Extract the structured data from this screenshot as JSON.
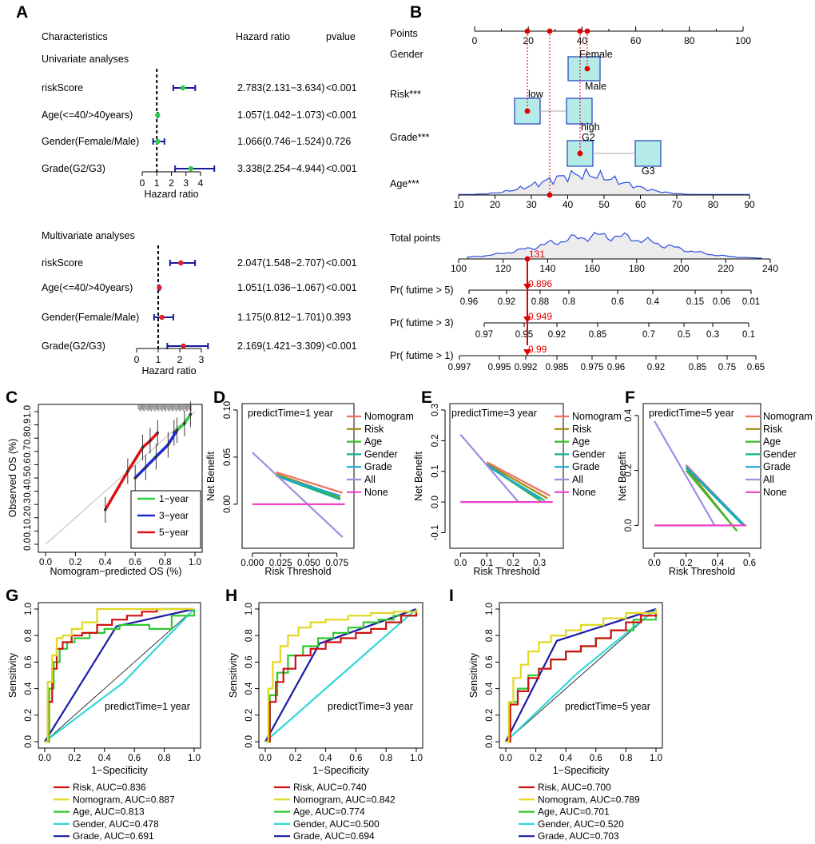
{
  "panel_labels": [
    "A",
    "B",
    "C",
    "D",
    "E",
    "F",
    "G",
    "H",
    "I"
  ],
  "colors": {
    "univariate_point": "#2ecc40",
    "multivariate_point": "#e02020",
    "ci_line": "#1a1aa0",
    "nomogram_box_fill": "#b5ebe6",
    "nomogram_box_stroke": "#2040c0",
    "red": "#e00000",
    "one_year": "#2ecc40",
    "three_year": "#1a2ad0",
    "five_year": "#e01010",
    "dca_nomogram": "#f07060",
    "dca_risk": "#a08a10",
    "dca_age": "#3cb830",
    "dca_gender": "#10b090",
    "dca_grade": "#20a8d8",
    "dca_all": "#a08ce0",
    "dca_none": "#f040c8",
    "roc_risk": "#d01010",
    "roc_nomogram": "#e0d820",
    "roc_age": "#30c830",
    "roc_gender": "#30d8d8",
    "roc_grade": "#1a1aa8"
  },
  "chart_data": [
    {
      "panel": "A",
      "type": "forest",
      "header": {
        "characteristics": "Characteristics",
        "hazard_ratio": "Hazard ratio",
        "pvalue": "pvalue"
      },
      "xlabel": "Hazard ratio",
      "groups": [
        {
          "title": "Univariate analyses",
          "xlim": [
            0,
            4
          ],
          "ticks": [
            "0",
            "1",
            "2",
            "3",
            "4"
          ],
          "rows": [
            {
              "name": "riskScore",
              "hr": 2.783,
              "low": 2.131,
              "high": 3.634,
              "hr_text": "2.783(2.131−3.634)",
              "p": "<0.001"
            },
            {
              "name": "Age(<=40/>40years)",
              "hr": 1.057,
              "low": 1.042,
              "high": 1.073,
              "hr_text": "1.057(1.042−1.073)",
              "p": "<0.001"
            },
            {
              "name": "Gender(Female/Male)",
              "hr": 1.066,
              "low": 0.746,
              "high": 1.524,
              "hr_text": "1.066(0.746−1.524)",
              "p": "0.726"
            },
            {
              "name": "Grade(G2/G3)",
              "hr": 3.338,
              "low": 2.254,
              "high": 4.944,
              "hr_text": "3.338(2.254−4.944)",
              "p": "<0.001"
            }
          ]
        },
        {
          "title": "Multivariate analyses",
          "xlim": [
            0,
            3
          ],
          "ticks": [
            "0",
            "1",
            "2",
            "3"
          ],
          "rows": [
            {
              "name": "riskScore",
              "hr": 2.047,
              "low": 1.548,
              "high": 2.707,
              "hr_text": "2.047(1.548−2.707)",
              "p": "<0.001"
            },
            {
              "name": "Age(<=40/>40years)",
              "hr": 1.051,
              "low": 1.036,
              "high": 1.067,
              "hr_text": "1.051(1.036−1.067)",
              "p": "<0.001"
            },
            {
              "name": "Gender(Female/Male)",
              "hr": 1.175,
              "low": 0.812,
              "high": 1.701,
              "hr_text": "1.175(0.812−1.701)",
              "p": "0.393"
            },
            {
              "name": "Grade(G2/G3)",
              "hr": 2.169,
              "low": 1.421,
              "high": 3.309,
              "hr_text": "2.169(1.421−3.309)",
              "p": "<0.001"
            }
          ]
        }
      ]
    },
    {
      "panel": "B",
      "type": "nomogram",
      "points_label": "Points",
      "points_ticks": [
        0,
        20,
        40,
        60,
        80,
        100
      ],
      "variables": [
        {
          "name": "Gender",
          "levels": [
            "Female",
            "Male"
          ]
        },
        {
          "name": "Risk***",
          "levels": [
            "low",
            "high"
          ]
        },
        {
          "name": "Grade***",
          "levels": [
            "G2",
            "G3"
          ]
        },
        {
          "name": "Age***",
          "ticks": [
            10,
            20,
            30,
            40,
            50,
            60,
            70,
            80,
            90
          ]
        }
      ],
      "total_points": {
        "label": "Total points",
        "ticks": [
          100,
          120,
          140,
          160,
          180,
          200,
          220,
          240
        ],
        "value": 131,
        "value_text": "131"
      },
      "survival_rows": [
        {
          "label": "Pr( futime > 5)",
          "ticks": [
            "0.96",
            "0.92",
            "0.88",
            "0.8",
            "0.6",
            "0.4",
            "0.15",
            "0.06",
            "0.01"
          ],
          "value": 0.896,
          "value_text": "0.896"
        },
        {
          "label": "Pr( futime > 3)",
          "ticks": [
            "0.97",
            "0.95",
            "0.92",
            "0.85",
            "0.7",
            "0.5",
            "0.3",
            "0.1"
          ],
          "value": 0.949,
          "value_text": "0.949"
        },
        {
          "label": "Pr( futime > 1)",
          "ticks": [
            "0.997",
            "0.995",
            "0.992",
            "0.985",
            "0.975",
            "0.96",
            "0.92",
            "0.85",
            "0.75",
            "0.65"
          ],
          "value": 0.99,
          "value_text": "0.99"
        }
      ]
    },
    {
      "panel": "C",
      "type": "calibration",
      "xlabel": "Nomogram−predicted OS (%)",
      "ylabel": "Observed OS (%)",
      "xlim": [
        0,
        1
      ],
      "ylim": [
        0,
        1
      ],
      "xticks": [
        "0.0",
        "0.2",
        "0.4",
        "0.6",
        "0.8",
        "1.0"
      ],
      "yticks": [
        "0.0",
        "0.1",
        "0.2",
        "0.3",
        "0.4",
        "0.5",
        "0.6",
        "0.7",
        "0.8",
        "0.9",
        "1.0"
      ],
      "legend": [
        "1−year",
        "3−year",
        "5−year"
      ],
      "series": [
        {
          "name": "1−year",
          "x": [
            0.86,
            0.93,
            0.97
          ],
          "y": [
            0.84,
            0.91,
            0.98
          ]
        },
        {
          "name": "3−year",
          "x": [
            0.6,
            0.67,
            0.74,
            0.82,
            0.88
          ],
          "y": [
            0.5,
            0.58,
            0.66,
            0.75,
            0.86
          ]
        },
        {
          "name": "5−year",
          "x": [
            0.4,
            0.55,
            0.65,
            0.7,
            0.75
          ],
          "y": [
            0.26,
            0.55,
            0.73,
            0.78,
            0.84
          ]
        }
      ]
    },
    {
      "panel": "D",
      "type": "line",
      "title": "predictTime=1 year",
      "xlabel": "Risk Threshold",
      "ylabel": "Net Benefit",
      "xlim": [
        -0.002,
        0.083
      ],
      "ylim": [
        -0.04,
        0.1
      ],
      "xticks": [
        "0.000",
        "0.025",
        "0.050",
        "0.075"
      ],
      "yticks": [
        "0.00",
        "0.05",
        "0.10"
      ],
      "legend": [
        "Nomogram",
        "Risk",
        "Age",
        "Gender",
        "Grade",
        "All",
        "None"
      ],
      "series": [
        {
          "name": "Nomogram",
          "x": [
            0.021,
            0.08
          ],
          "y": [
            0.034,
            0.012
          ]
        },
        {
          "name": "Risk",
          "x": [
            0.021,
            0.078
          ],
          "y": [
            0.032,
            0.008
          ]
        },
        {
          "name": "Age",
          "x": [
            0.021,
            0.078
          ],
          "y": [
            0.031,
            0.006
          ]
        },
        {
          "name": "Gender",
          "x": [
            0.021,
            0.078
          ],
          "y": [
            0.03,
            0.005
          ]
        },
        {
          "name": "Grade",
          "x": [
            0.021,
            0.078
          ],
          "y": [
            0.03,
            0.009
          ]
        },
        {
          "name": "All",
          "x": [
            0.0,
            0.08
          ],
          "y": [
            0.055,
            -0.035
          ]
        },
        {
          "name": "None",
          "x": [
            0.0,
            0.082
          ],
          "y": [
            0.0,
            0.0
          ]
        }
      ]
    },
    {
      "panel": "E",
      "type": "line",
      "title": "predictTime=3 year",
      "xlabel": "Risk Threshold",
      "ylabel": "Net Benefit",
      "xlim": [
        -0.01,
        0.36
      ],
      "ylim": [
        -0.13,
        0.3
      ],
      "xticks": [
        "0.0",
        "0.1",
        "0.2",
        "0.3"
      ],
      "yticks": [
        "-0.1",
        "0.0",
        "0.1",
        "0.2",
        "0.3"
      ],
      "legend": [
        "Nomogram",
        "Risk",
        "Age",
        "Gender",
        "Grade",
        "All",
        "None"
      ],
      "series": [
        {
          "name": "Nomogram",
          "x": [
            0.1,
            0.34
          ],
          "y": [
            0.13,
            0.02
          ]
        },
        {
          "name": "Risk",
          "x": [
            0.1,
            0.33
          ],
          "y": [
            0.125,
            0.012
          ]
        },
        {
          "name": "Age",
          "x": [
            0.1,
            0.31
          ],
          "y": [
            0.12,
            0.0
          ]
        },
        {
          "name": "Gender",
          "x": [
            0.1,
            0.32
          ],
          "y": [
            0.118,
            0.005
          ]
        },
        {
          "name": "Grade",
          "x": [
            0.1,
            0.3
          ],
          "y": [
            0.122,
            0.01
          ]
        },
        {
          "name": "All",
          "x": [
            0.0,
            0.22
          ],
          "y": [
            0.22,
            0.0
          ]
        },
        {
          "name": "None",
          "x": [
            0.0,
            0.35
          ],
          "y": [
            0.0,
            0.0
          ]
        }
      ]
    },
    {
      "panel": "F",
      "type": "line",
      "title": "predictTime=5 year",
      "xlabel": "Risk Threshold",
      "ylabel": "Net Benefit",
      "xlim": [
        -0.02,
        0.62
      ],
      "ylim": [
        -0.06,
        0.42
      ],
      "xticks": [
        "0.0",
        "0.2",
        "0.4",
        "0.6"
      ],
      "yticks": [
        "0.0",
        "0.2",
        "0.4"
      ],
      "legend": [
        "Nomogram",
        "Risk",
        "Age",
        "Gender",
        "Grade",
        "All",
        "None"
      ],
      "series": [
        {
          "name": "Nomogram",
          "x": [
            0.2,
            0.57
          ],
          "y": [
            0.22,
            0.0
          ]
        },
        {
          "name": "Risk",
          "x": [
            0.2,
            0.52
          ],
          "y": [
            0.21,
            -0.02
          ]
        },
        {
          "name": "Age",
          "x": [
            0.2,
            0.52
          ],
          "y": [
            0.2,
            -0.02
          ]
        },
        {
          "name": "Gender",
          "x": [
            0.2,
            0.56
          ],
          "y": [
            0.21,
            0.0
          ]
        },
        {
          "name": "Grade",
          "x": [
            0.2,
            0.57
          ],
          "y": [
            0.215,
            0.0
          ]
        },
        {
          "name": "All",
          "x": [
            0.0,
            0.38
          ],
          "y": [
            0.38,
            0.0
          ]
        },
        {
          "name": "None",
          "x": [
            0.0,
            0.58
          ],
          "y": [
            0.0,
            0.0
          ]
        }
      ]
    },
    {
      "panel": "G",
      "type": "roc",
      "title": "predictTime=1 year",
      "xlabel": "1−Specificity",
      "ylabel": "Sensitivity",
      "ticks": [
        "0.0",
        "0.2",
        "0.4",
        "0.6",
        "0.8",
        "1.0"
      ],
      "legend": [
        "Risk, AUC=0.836",
        "Nomogram, AUC=0.887",
        "Age, AUC=0.813",
        "Gender, AUC=0.478",
        "Grade, AUC=0.691"
      ],
      "series": [
        {
          "name": "Risk",
          "x": [
            0,
            0.02,
            0.05,
            0.08,
            0.12,
            0.18,
            0.25,
            0.35,
            0.45,
            0.55,
            0.65,
            0.75,
            1
          ],
          "y": [
            0,
            0.3,
            0.55,
            0.7,
            0.75,
            0.8,
            0.82,
            0.88,
            0.92,
            0.95,
            0.98,
            1,
            1
          ]
        },
        {
          "name": "Nomogram",
          "x": [
            0,
            0.02,
            0.05,
            0.08,
            0.12,
            0.18,
            0.25,
            0.35,
            0.5,
            0.65,
            0.8,
            1
          ],
          "y": [
            0,
            0.45,
            0.65,
            0.78,
            0.8,
            0.85,
            0.9,
            1,
            1,
            1,
            1,
            1
          ]
        },
        {
          "name": "Age",
          "x": [
            0,
            0.03,
            0.06,
            0.1,
            0.15,
            0.2,
            0.3,
            0.4,
            0.5,
            0.6,
            0.7,
            0.85,
            1
          ],
          "y": [
            0,
            0.4,
            0.6,
            0.7,
            0.75,
            0.78,
            0.82,
            0.85,
            0.88,
            0.88,
            0.85,
            0.95,
            1
          ]
        },
        {
          "name": "Gender",
          "x": [
            0,
            0.52,
            1
          ],
          "y": [
            0,
            0.44,
            1
          ]
        },
        {
          "name": "Grade",
          "x": [
            0,
            0.48,
            1
          ],
          "y": [
            0,
            0.87,
            1
          ]
        }
      ]
    },
    {
      "panel": "H",
      "type": "roc",
      "title": "predictTime=3 year",
      "xlabel": "1−Specificity",
      "ylabel": "Sensitivity",
      "ticks": [
        "0.0",
        "0.2",
        "0.4",
        "0.6",
        "0.8",
        "1.0"
      ],
      "legend": [
        "Risk, AUC=0.740",
        "Nomogram, AUC=0.842",
        "Age, AUC=0.774",
        "Gender, AUC=0.500",
        "Grade, AUC=0.694"
      ],
      "series": [
        {
          "name": "Risk",
          "x": [
            0,
            0.03,
            0.07,
            0.12,
            0.2,
            0.3,
            0.4,
            0.5,
            0.6,
            0.7,
            0.8,
            0.9,
            1
          ],
          "y": [
            0,
            0.3,
            0.45,
            0.55,
            0.65,
            0.7,
            0.75,
            0.78,
            0.82,
            0.85,
            0.9,
            0.95,
            1
          ]
        },
        {
          "name": "Nomogram",
          "x": [
            0,
            0.02,
            0.05,
            0.1,
            0.15,
            0.22,
            0.3,
            0.4,
            0.55,
            0.7,
            0.85,
            1
          ],
          "y": [
            0,
            0.4,
            0.6,
            0.72,
            0.8,
            0.86,
            0.9,
            0.92,
            0.95,
            0.97,
            0.98,
            1
          ]
        },
        {
          "name": "Age",
          "x": [
            0,
            0.03,
            0.08,
            0.15,
            0.25,
            0.35,
            0.45,
            0.55,
            0.65,
            0.75,
            0.85,
            1
          ],
          "y": [
            0,
            0.35,
            0.52,
            0.65,
            0.72,
            0.78,
            0.82,
            0.86,
            0.9,
            0.92,
            0.95,
            1
          ]
        },
        {
          "name": "Gender",
          "x": [
            0,
            0.5,
            1
          ],
          "y": [
            0,
            0.5,
            1
          ]
        },
        {
          "name": "Grade",
          "x": [
            0,
            0.36,
            1
          ],
          "y": [
            0,
            0.74,
            1
          ]
        }
      ]
    },
    {
      "panel": "I",
      "type": "roc",
      "title": "predictTime=5 year",
      "xlabel": "1−Specificity",
      "ylabel": "Sensitivity",
      "ticks": [
        "0.0",
        "0.2",
        "0.4",
        "0.6",
        "0.8",
        "1.0"
      ],
      "legend": [
        "Risk, AUC=0.700",
        "Nomogram, AUC=0.789",
        "Age, AUC=0.701",
        "Gender, AUC=0.520",
        "Grade, AUC=0.703"
      ],
      "series": [
        {
          "name": "Risk",
          "x": [
            0,
            0.03,
            0.08,
            0.15,
            0.22,
            0.3,
            0.4,
            0.5,
            0.6,
            0.7,
            0.8,
            0.9,
            1
          ],
          "y": [
            0,
            0.28,
            0.38,
            0.48,
            0.55,
            0.62,
            0.68,
            0.72,
            0.78,
            0.84,
            0.9,
            0.95,
            1
          ]
        },
        {
          "name": "Nomogram",
          "x": [
            0,
            0.02,
            0.05,
            0.1,
            0.15,
            0.22,
            0.3,
            0.4,
            0.5,
            0.65,
            0.8,
            1
          ],
          "y": [
            0,
            0.3,
            0.48,
            0.58,
            0.68,
            0.75,
            0.8,
            0.84,
            0.88,
            0.93,
            0.97,
            1
          ]
        },
        {
          "name": "Age",
          "x": [
            0,
            0.03,
            0.08,
            0.15,
            0.22,
            0.3,
            0.4,
            0.5,
            0.6,
            0.7,
            0.85,
            1
          ],
          "y": [
            0,
            0.3,
            0.4,
            0.5,
            0.55,
            0.62,
            0.68,
            0.72,
            0.78,
            0.84,
            0.92,
            1
          ]
        },
        {
          "name": "Gender",
          "x": [
            0,
            0.48,
            1
          ],
          "y": [
            0,
            0.52,
            1
          ]
        },
        {
          "name": "Grade",
          "x": [
            0,
            0.34,
            1
          ],
          "y": [
            0,
            0.76,
            1
          ]
        }
      ]
    }
  ]
}
